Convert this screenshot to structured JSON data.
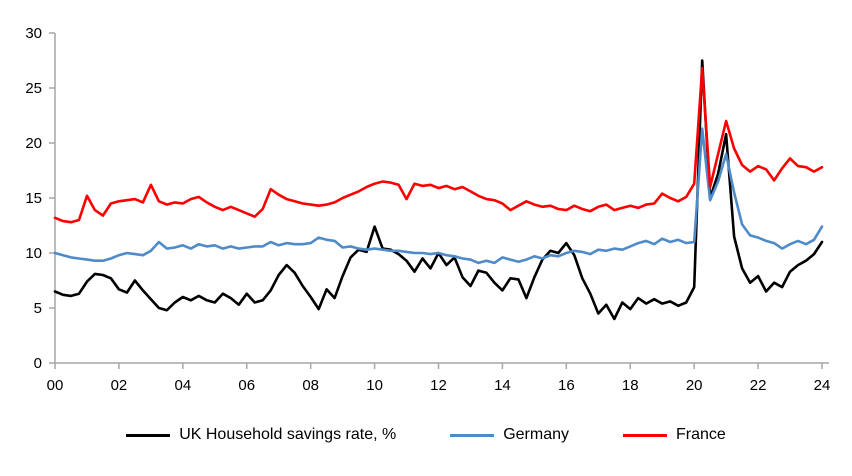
{
  "chart_data": {
    "type": "line",
    "title": "",
    "xlabel": "",
    "ylabel": "",
    "x_start": 2000,
    "x_step": 0.25,
    "xlim": [
      2000,
      2024
    ],
    "ylim": [
      0,
      30
    ],
    "yticks": [
      0,
      5,
      10,
      15,
      20,
      25,
      30
    ],
    "xticks": [
      2000,
      2002,
      2004,
      2006,
      2008,
      2010,
      2012,
      2014,
      2016,
      2018,
      2020,
      2022,
      2024
    ],
    "xtick_labels": [
      "00",
      "02",
      "04",
      "06",
      "08",
      "10",
      "12",
      "14",
      "16",
      "18",
      "20",
      "22",
      "24"
    ],
    "grid": false,
    "legend_position": "bottom",
    "axis_color": "#a6a6a6",
    "label_color": "#000000",
    "series": [
      {
        "name": "UK Household savings rate, %",
        "color": "#000000",
        "values": [
          6.5,
          6.2,
          6.1,
          6.3,
          7.4,
          8.1,
          8.0,
          7.7,
          6.7,
          6.4,
          7.5,
          6.6,
          5.8,
          5.0,
          4.8,
          5.5,
          6.0,
          5.7,
          6.1,
          5.7,
          5.5,
          6.3,
          5.9,
          5.3,
          6.3,
          5.5,
          5.7,
          6.6,
          8.0,
          8.9,
          8.2,
          7.0,
          6.0,
          4.9,
          6.7,
          5.9,
          7.9,
          9.6,
          10.3,
          10.1,
          12.4,
          10.4,
          10.3,
          9.9,
          9.3,
          8.3,
          9.5,
          8.6,
          10.0,
          8.9,
          9.6,
          7.8,
          7.0,
          8.4,
          8.2,
          7.3,
          6.6,
          7.7,
          7.6,
          5.9,
          7.8,
          9.4,
          10.2,
          10.0,
          10.9,
          9.8,
          7.7,
          6.3,
          4.5,
          5.3,
          4.0,
          5.5,
          4.9,
          5.9,
          5.4,
          5.8,
          5.4,
          5.6,
          5.2,
          5.5,
          6.9,
          27.5,
          15.0,
          17.2,
          20.8,
          11.5,
          8.6,
          7.3,
          7.9,
          6.5,
          7.3,
          6.9,
          8.3,
          8.9,
          9.3,
          9.9,
          11.0
        ]
      },
      {
        "name": "Germany",
        "color": "#4f8bc9",
        "values": [
          10.0,
          9.8,
          9.6,
          9.5,
          9.4,
          9.3,
          9.3,
          9.5,
          9.8,
          10.0,
          9.9,
          9.8,
          10.2,
          11.0,
          10.4,
          10.5,
          10.7,
          10.4,
          10.8,
          10.6,
          10.7,
          10.4,
          10.6,
          10.4,
          10.5,
          10.6,
          10.6,
          11.0,
          10.7,
          10.9,
          10.8,
          10.8,
          10.9,
          11.4,
          11.2,
          11.1,
          10.5,
          10.6,
          10.4,
          10.3,
          10.4,
          10.3,
          10.2,
          10.2,
          10.1,
          10.0,
          10.0,
          9.9,
          10.0,
          9.8,
          9.7,
          9.5,
          9.4,
          9.1,
          9.3,
          9.1,
          9.6,
          9.4,
          9.2,
          9.4,
          9.7,
          9.5,
          9.8,
          9.7,
          10.0,
          10.2,
          10.1,
          9.9,
          10.3,
          10.2,
          10.4,
          10.3,
          10.6,
          10.9,
          11.1,
          10.8,
          11.3,
          11.0,
          11.2,
          10.9,
          11.0,
          21.3,
          14.8,
          16.5,
          19.0,
          15.5,
          12.6,
          11.6,
          11.4,
          11.1,
          10.9,
          10.4,
          10.8,
          11.1,
          10.8,
          11.2,
          12.4
        ]
      },
      {
        "name": "France",
        "color": "#fe0000",
        "values": [
          13.2,
          12.9,
          12.8,
          13.0,
          15.2,
          13.9,
          13.4,
          14.5,
          14.7,
          14.8,
          14.9,
          14.6,
          16.2,
          14.7,
          14.4,
          14.6,
          14.5,
          14.9,
          15.1,
          14.6,
          14.2,
          13.9,
          14.2,
          13.9,
          13.6,
          13.3,
          14.0,
          15.8,
          15.3,
          14.9,
          14.7,
          14.5,
          14.4,
          14.3,
          14.4,
          14.6,
          15.0,
          15.3,
          15.6,
          16.0,
          16.3,
          16.5,
          16.4,
          16.2,
          14.9,
          16.3,
          16.1,
          16.2,
          15.9,
          16.1,
          15.8,
          16.0,
          15.6,
          15.2,
          14.9,
          14.8,
          14.5,
          13.9,
          14.3,
          14.7,
          14.4,
          14.2,
          14.3,
          14.0,
          13.9,
          14.3,
          14.0,
          13.8,
          14.2,
          14.4,
          13.9,
          14.1,
          14.3,
          14.1,
          14.4,
          14.5,
          15.4,
          15.0,
          14.7,
          15.1,
          16.3,
          26.8,
          16.0,
          19.0,
          22.0,
          19.5,
          18.0,
          17.4,
          17.9,
          17.6,
          16.6,
          17.7,
          18.6,
          17.9,
          17.8,
          17.4,
          17.8
        ]
      }
    ]
  }
}
